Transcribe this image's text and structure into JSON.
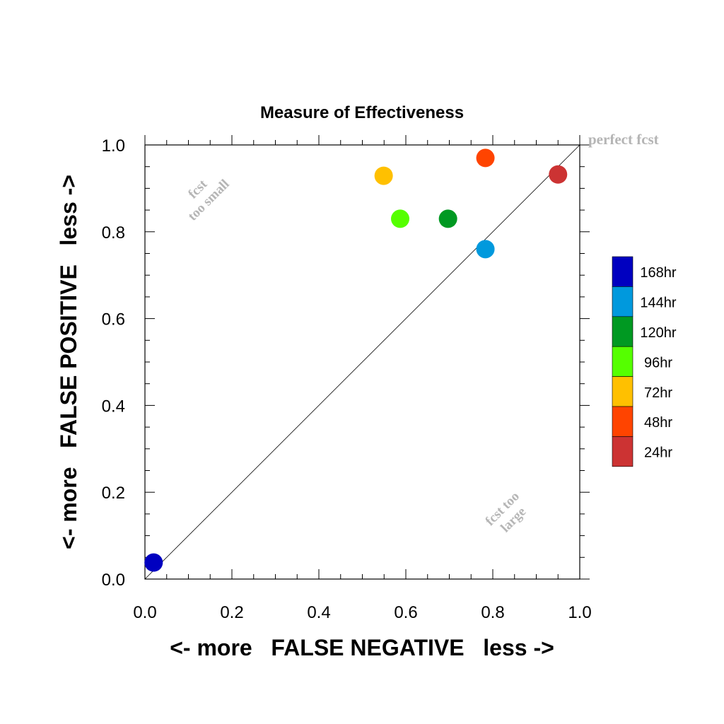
{
  "chart_data": {
    "type": "scatter",
    "title": "Measure of Effectiveness",
    "xlabel": "<- more   FALSE NEGATIVE   less ->",
    "ylabel": "<- more   FALSE POSITIVE   less ->",
    "xlim": [
      0.0,
      1.0
    ],
    "ylim": [
      0.0,
      1.0
    ],
    "xticks": [
      "0.0",
      "0.2",
      "0.4",
      "0.6",
      "0.8",
      "1.0"
    ],
    "yticks": [
      "0.0",
      "0.2",
      "0.4",
      "0.6",
      "0.8",
      "1.0"
    ],
    "grid": false,
    "legend_position": "right",
    "reference_line": {
      "from": [
        0,
        0
      ],
      "to": [
        1,
        1
      ]
    },
    "annotations": {
      "perfect": "perfect fcst",
      "too_small_line1": "fcst",
      "too_small_line2": "too small",
      "too_large_line1": "fcst too",
      "too_large_line2": "large"
    },
    "series": [
      {
        "name": "168hr",
        "color": "#0000c0",
        "x": 0.02,
        "y": 0.038
      },
      {
        "name": "144hr",
        "color": "#0099dd",
        "x": 0.783,
        "y": 0.76
      },
      {
        "name": "120hr",
        "color": "#009922",
        "x": 0.697,
        "y": 0.83
      },
      {
        "name": "96hr",
        "color": "#55ff00",
        "x": 0.587,
        "y": 0.83
      },
      {
        "name": "72hr",
        "color": "#ffc000",
        "x": 0.549,
        "y": 0.929
      },
      {
        "name": "48hr",
        "color": "#ff4400",
        "x": 0.783,
        "y": 0.97
      },
      {
        "name": "24hr",
        "color": "#cc3333",
        "x": 0.95,
        "y": 0.932
      }
    ]
  }
}
